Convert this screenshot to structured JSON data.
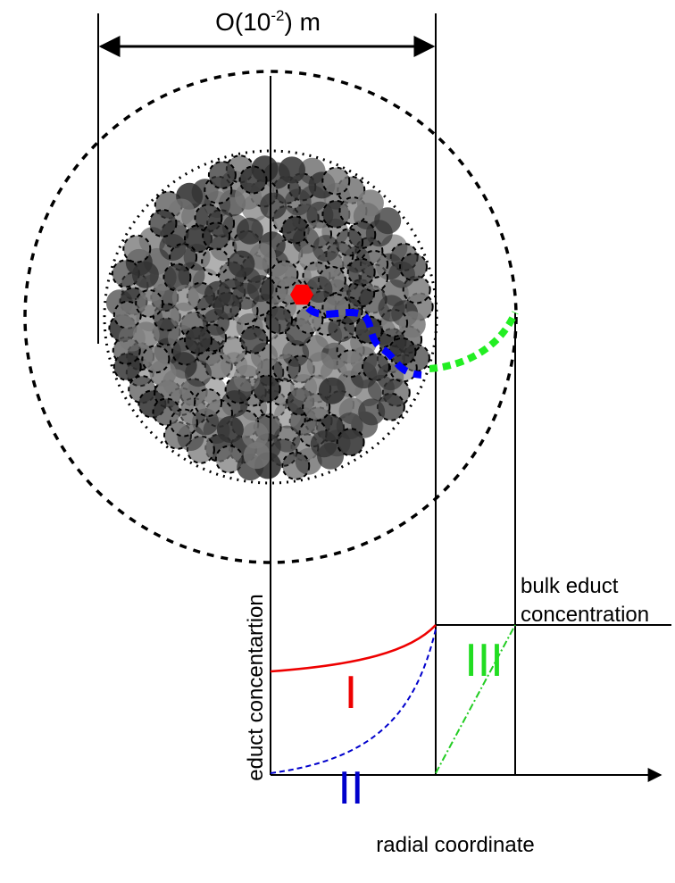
{
  "scale_label": {
    "base": "O(10",
    "sup": "-2",
    "tail": ") m"
  },
  "bulk_label": [
    "bulk educt",
    "concentration"
  ],
  "y_axis_label": "educt concentartion",
  "x_axis_label": "radial coordinate",
  "regimes": {
    "first": "I",
    "second": "II",
    "third": "III"
  }
}
